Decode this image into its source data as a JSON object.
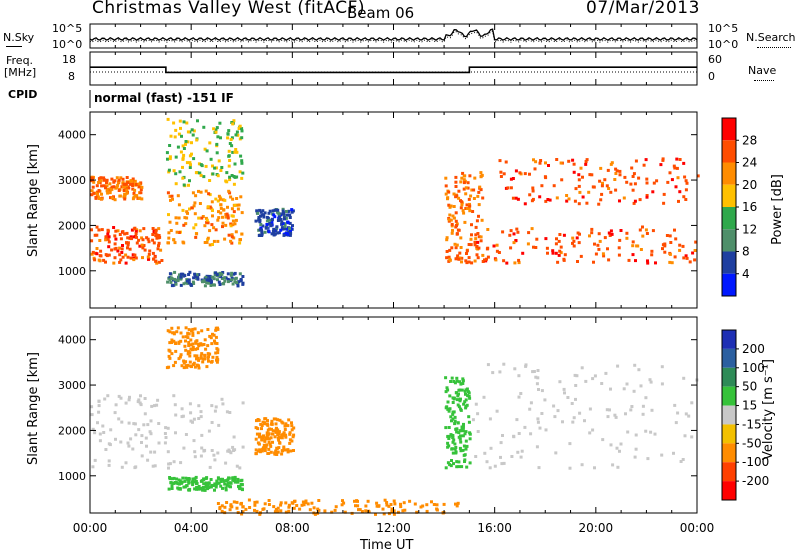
{
  "header": {
    "title": "Christmas Valley West (fitACF)",
    "beam": "Beam 06",
    "date": "07/Mar/2013"
  },
  "noise_panel": {
    "left_label": "N.Sky",
    "right_label": "N.Search",
    "left_ticks": [
      "10^5",
      "10^0"
    ],
    "right_ticks": [
      "10^5",
      "10^0"
    ]
  },
  "freq_panel": {
    "left_label_1": "Freq.",
    "left_label_2": "[MHz]",
    "right_label": "Nave",
    "left_ticks": [
      "18",
      "8"
    ],
    "right_ticks": [
      "60",
      "0"
    ]
  },
  "cpid": {
    "label": "CPID",
    "text": "normal (fast) -151 IF"
  },
  "power_panel": {
    "ylabel": "Slant Range [km]",
    "yticks": [
      "4000",
      "3000",
      "2000",
      "1000"
    ],
    "colorbar_label": "Power [dB]",
    "colorbar_ticks": [
      "28",
      "24",
      "20",
      "16",
      "12",
      "8",
      "4"
    ],
    "colorbar_colors": [
      "#ff0000",
      "#ff4d00",
      "#ff8c00",
      "#ffc000",
      "#2fa84b",
      "#4f8f6a",
      "#1f3fa0",
      "#0018ff"
    ]
  },
  "velocity_panel": {
    "ylabel": "Slant Range [km]",
    "yticks": [
      "4000",
      "3000",
      "2000",
      "1000"
    ],
    "colorbar_label": "Velocity [m s⁻¹]",
    "colorbar_ticks": [
      "200",
      "100",
      "50",
      "15",
      "-15",
      "-50",
      "-100",
      "-200"
    ],
    "colorbar_colors": [
      "#1e2fb4",
      "#2b5fa0",
      "#2e8b57",
      "#36c23a",
      "#c8c8c8",
      "#f3c000",
      "#ff8c00",
      "#ff4000",
      "#ff0000"
    ]
  },
  "x_axis": {
    "label": "Time UT",
    "ticks": [
      "00:00",
      "04:00",
      "08:00",
      "12:00",
      "16:00",
      "20:00",
      "00:00"
    ]
  },
  "chart_data": {
    "type": "heatmap",
    "title": "Christmas Valley West (fitACF) Beam 06 07/Mar/2013",
    "x_range_hours": [
      0,
      24
    ],
    "y_range_km": [
      180,
      4500
    ],
    "frequency_mhz": [
      {
        "start_h": 0.0,
        "end_h": 3.0,
        "value": 14
      },
      {
        "start_h": 3.0,
        "end_h": 15.0,
        "value": 10
      },
      {
        "start_h": 15.0,
        "end_h": 24.0,
        "value": 14
      }
    ],
    "power_regions_db": [
      {
        "t0": 0.0,
        "t1": 2.8,
        "r0": 1200,
        "r1": 2000,
        "level": 28
      },
      {
        "t0": 0.0,
        "t1": 2.0,
        "r0": 2600,
        "r1": 3100,
        "level": 26
      },
      {
        "t0": 3.0,
        "t1": 6.0,
        "r0": 1600,
        "r1": 2800,
        "level": 24
      },
      {
        "t0": 3.0,
        "t1": 6.0,
        "r0": 2900,
        "r1": 4400,
        "level": 18
      },
      {
        "t0": 6.5,
        "t1": 8.0,
        "r0": 1800,
        "r1": 2400,
        "level": 8
      },
      {
        "t0": 3.0,
        "t1": 6.0,
        "r0": 700,
        "r1": 1000,
        "level": 10
      },
      {
        "t0": 14.0,
        "t1": 15.5,
        "r0": 1200,
        "r1": 3200,
        "level": 26
      },
      {
        "t0": 15.0,
        "t1": 24.0,
        "r0": 1200,
        "r1": 2000,
        "level": 28
      },
      {
        "t0": 16.0,
        "t1": 24.0,
        "r0": 2500,
        "r1": 3500,
        "level": 28
      }
    ],
    "velocity_regions_ms": [
      {
        "t0": 0.0,
        "t1": 6.0,
        "r0": 1200,
        "r1": 2800,
        "value": 0
      },
      {
        "t0": 3.0,
        "t1": 5.0,
        "r0": 3400,
        "r1": 4300,
        "value": -60
      },
      {
        "t0": 6.5,
        "t1": 8.0,
        "r0": 1500,
        "r1": 2300,
        "value": -80
      },
      {
        "t0": 3.0,
        "t1": 6.0,
        "r0": 700,
        "r1": 1000,
        "value": 40
      },
      {
        "t0": 5.0,
        "t1": 14.5,
        "r0": 180,
        "r1": 500,
        "value": -60
      },
      {
        "t0": 14.0,
        "t1": 15.0,
        "r0": 1200,
        "r1": 3200,
        "value": 40
      },
      {
        "t0": 15.0,
        "t1": 24.0,
        "r0": 1200,
        "r1": 3500,
        "value": 0
      }
    ]
  }
}
